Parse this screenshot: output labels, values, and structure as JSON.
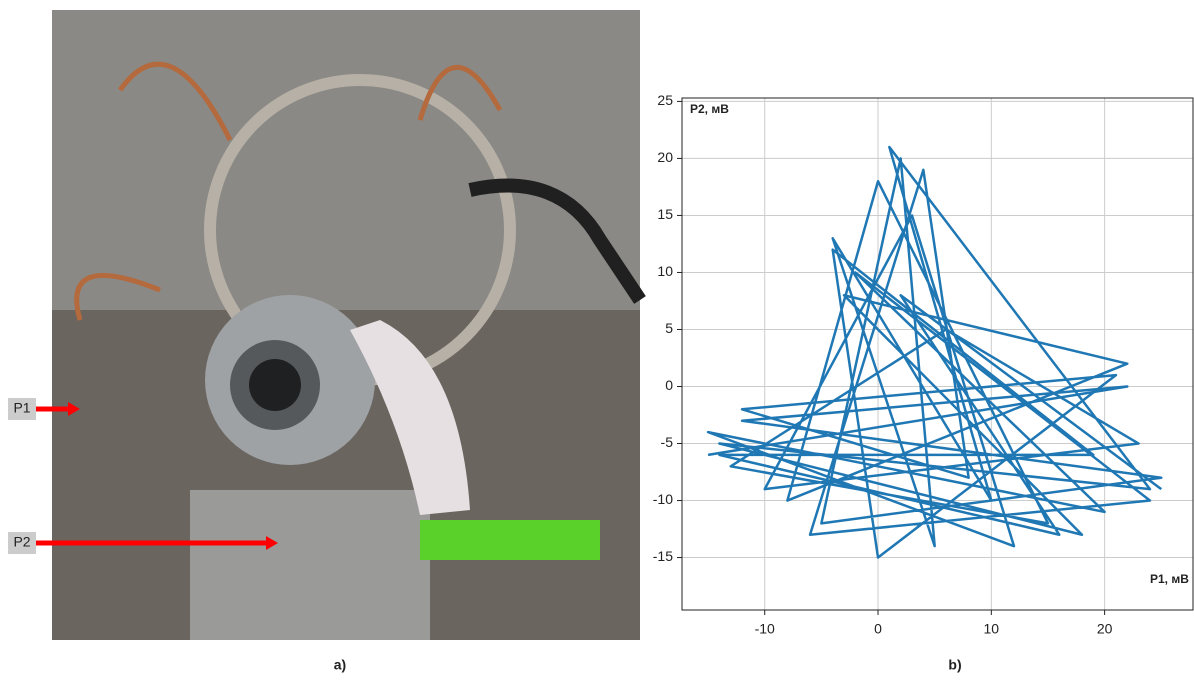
{
  "figure": {
    "photo_labels": [
      "P1",
      "P2"
    ],
    "captions": [
      "a)",
      "b)"
    ]
  },
  "chart_data": {
    "type": "line",
    "x_label": "P1, мВ",
    "y_label": "P2, мВ",
    "xlim": [
      -17.3,
      27.8
    ],
    "ylim": [
      -19.6,
      25.3
    ],
    "xticks": [
      -10,
      0,
      10,
      20
    ],
    "yticks": [
      -15,
      -10,
      -5,
      0,
      5,
      10,
      15,
      20,
      25
    ],
    "grid": true,
    "series": [
      {
        "color": "#1f77b4",
        "x": [
          -15,
          22,
          -12,
          25,
          -5,
          2,
          5,
          -4,
          10,
          1,
          24,
          -14,
          18,
          -3,
          22,
          -8,
          0,
          15,
          -13,
          6,
          23,
          -10,
          3,
          12,
          -15,
          20,
          -2,
          24,
          -6,
          4,
          8,
          -12,
          21,
          0,
          -4,
          19,
          -14,
          16,
          2,
          25
        ],
        "y": [
          -6,
          0,
          -3,
          -8,
          -12,
          20,
          -14,
          13,
          -10,
          21,
          -9,
          -5,
          -13,
          8,
          2,
          -10,
          18,
          -12,
          -7,
          5,
          -5,
          -9,
          15,
          -14,
          -4,
          -11,
          10,
          -10,
          -13,
          19,
          -8,
          -2,
          1,
          -15,
          12,
          -6,
          -6,
          -13,
          8,
          -9
        ]
      }
    ]
  }
}
